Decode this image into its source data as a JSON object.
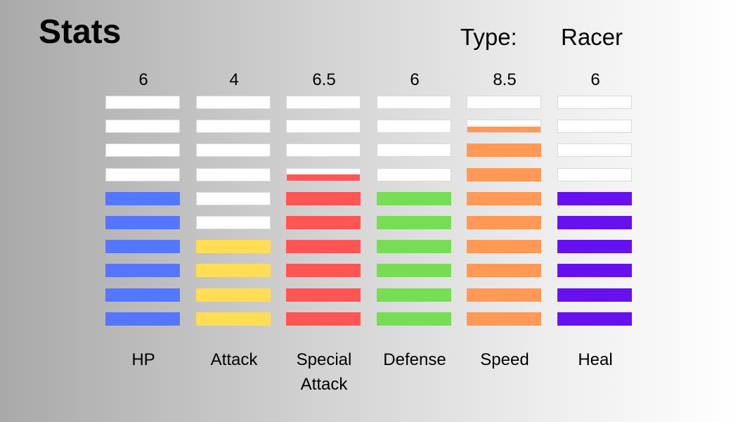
{
  "header": {
    "title": "Stats",
    "type_label": "Type:",
    "type_value": "Racer"
  },
  "chart_data": {
    "type": "bar",
    "max": 10,
    "categories": [
      "HP",
      "Attack",
      "Special Attack",
      "Defense",
      "Speed",
      "Heal"
    ],
    "value_labels": [
      "6",
      "4",
      "6.5",
      "6",
      "8.5",
      "6"
    ],
    "values": [
      6,
      4,
      6.5,
      6,
      8.5,
      6
    ],
    "colors": [
      "#5577ff",
      "#ffdd55",
      "#ff5555",
      "#77dd55",
      "#ff9955",
      "#6611ee"
    ]
  }
}
